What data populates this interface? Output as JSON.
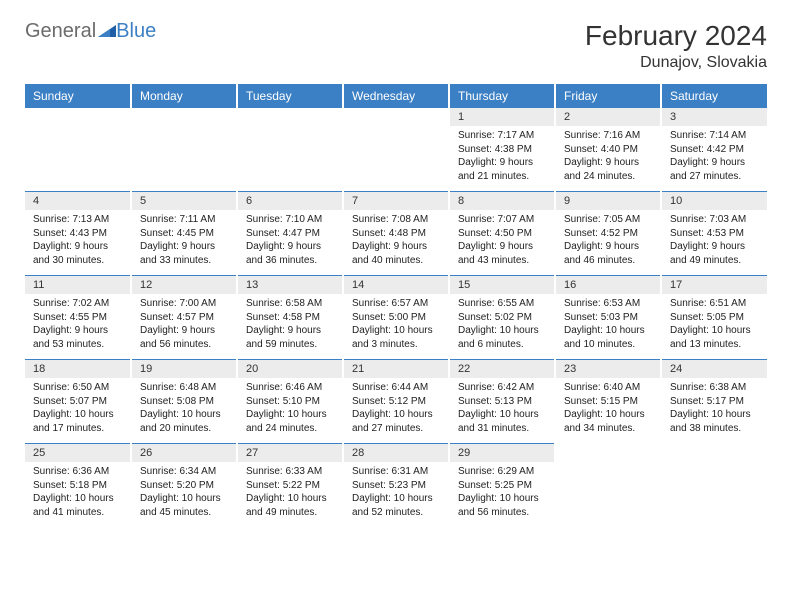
{
  "logo": {
    "general": "General",
    "blue": "Blue"
  },
  "title": "February 2024",
  "location": "Dunajov, Slovakia",
  "header_bg": "#3b7fc4",
  "daynum_bg": "#ececec",
  "days": [
    "Sunday",
    "Monday",
    "Tuesday",
    "Wednesday",
    "Thursday",
    "Friday",
    "Saturday"
  ],
  "weeks": [
    [
      null,
      null,
      null,
      null,
      {
        "n": "1",
        "sr": "7:17 AM",
        "ss": "4:38 PM",
        "dl": "9 hours and 21 minutes."
      },
      {
        "n": "2",
        "sr": "7:16 AM",
        "ss": "4:40 PM",
        "dl": "9 hours and 24 minutes."
      },
      {
        "n": "3",
        "sr": "7:14 AM",
        "ss": "4:42 PM",
        "dl": "9 hours and 27 minutes."
      }
    ],
    [
      {
        "n": "4",
        "sr": "7:13 AM",
        "ss": "4:43 PM",
        "dl": "9 hours and 30 minutes."
      },
      {
        "n": "5",
        "sr": "7:11 AM",
        "ss": "4:45 PM",
        "dl": "9 hours and 33 minutes."
      },
      {
        "n": "6",
        "sr": "7:10 AM",
        "ss": "4:47 PM",
        "dl": "9 hours and 36 minutes."
      },
      {
        "n": "7",
        "sr": "7:08 AM",
        "ss": "4:48 PM",
        "dl": "9 hours and 40 minutes."
      },
      {
        "n": "8",
        "sr": "7:07 AM",
        "ss": "4:50 PM",
        "dl": "9 hours and 43 minutes."
      },
      {
        "n": "9",
        "sr": "7:05 AM",
        "ss": "4:52 PM",
        "dl": "9 hours and 46 minutes."
      },
      {
        "n": "10",
        "sr": "7:03 AM",
        "ss": "4:53 PM",
        "dl": "9 hours and 49 minutes."
      }
    ],
    [
      {
        "n": "11",
        "sr": "7:02 AM",
        "ss": "4:55 PM",
        "dl": "9 hours and 53 minutes."
      },
      {
        "n": "12",
        "sr": "7:00 AM",
        "ss": "4:57 PM",
        "dl": "9 hours and 56 minutes."
      },
      {
        "n": "13",
        "sr": "6:58 AM",
        "ss": "4:58 PM",
        "dl": "9 hours and 59 minutes."
      },
      {
        "n": "14",
        "sr": "6:57 AM",
        "ss": "5:00 PM",
        "dl": "10 hours and 3 minutes."
      },
      {
        "n": "15",
        "sr": "6:55 AM",
        "ss": "5:02 PM",
        "dl": "10 hours and 6 minutes."
      },
      {
        "n": "16",
        "sr": "6:53 AM",
        "ss": "5:03 PM",
        "dl": "10 hours and 10 minutes."
      },
      {
        "n": "17",
        "sr": "6:51 AM",
        "ss": "5:05 PM",
        "dl": "10 hours and 13 minutes."
      }
    ],
    [
      {
        "n": "18",
        "sr": "6:50 AM",
        "ss": "5:07 PM",
        "dl": "10 hours and 17 minutes."
      },
      {
        "n": "19",
        "sr": "6:48 AM",
        "ss": "5:08 PM",
        "dl": "10 hours and 20 minutes."
      },
      {
        "n": "20",
        "sr": "6:46 AM",
        "ss": "5:10 PM",
        "dl": "10 hours and 24 minutes."
      },
      {
        "n": "21",
        "sr": "6:44 AM",
        "ss": "5:12 PM",
        "dl": "10 hours and 27 minutes."
      },
      {
        "n": "22",
        "sr": "6:42 AM",
        "ss": "5:13 PM",
        "dl": "10 hours and 31 minutes."
      },
      {
        "n": "23",
        "sr": "6:40 AM",
        "ss": "5:15 PM",
        "dl": "10 hours and 34 minutes."
      },
      {
        "n": "24",
        "sr": "6:38 AM",
        "ss": "5:17 PM",
        "dl": "10 hours and 38 minutes."
      }
    ],
    [
      {
        "n": "25",
        "sr": "6:36 AM",
        "ss": "5:18 PM",
        "dl": "10 hours and 41 minutes."
      },
      {
        "n": "26",
        "sr": "6:34 AM",
        "ss": "5:20 PM",
        "dl": "10 hours and 45 minutes."
      },
      {
        "n": "27",
        "sr": "6:33 AM",
        "ss": "5:22 PM",
        "dl": "10 hours and 49 minutes."
      },
      {
        "n": "28",
        "sr": "6:31 AM",
        "ss": "5:23 PM",
        "dl": "10 hours and 52 minutes."
      },
      {
        "n": "29",
        "sr": "6:29 AM",
        "ss": "5:25 PM",
        "dl": "10 hours and 56 minutes."
      },
      null,
      null
    ]
  ],
  "labels": {
    "sunrise": "Sunrise: ",
    "sunset": "Sunset: ",
    "daylight": "Daylight: "
  }
}
